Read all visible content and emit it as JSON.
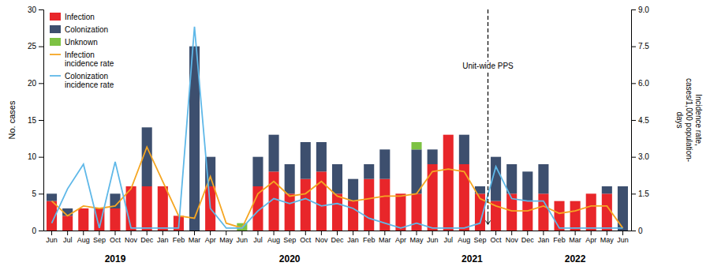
{
  "chart_data": {
    "type": "bar",
    "stacked": true,
    "legend": "upper left",
    "grid": false,
    "categories": [
      "Jun",
      "Jul",
      "Aug",
      "Sep",
      "Oct",
      "Nov",
      "Dec",
      "Jan",
      "Feb",
      "Mar",
      "Apr",
      "May",
      "Jun",
      "Jul",
      "Aug",
      "Sep",
      "Oct",
      "Nov",
      "Dec",
      "Jan",
      "Feb",
      "Mar",
      "Apr",
      "May",
      "Jun",
      "Jul",
      "Aug",
      "Sep",
      "Oct",
      "Nov",
      "Dec",
      "Jan",
      "Feb",
      "Mar",
      "Apr",
      "May",
      "Jun"
    ],
    "ylabel": "No. cases",
    "y2label": "Incidence rate,\ncases/1,000 population-\ndays",
    "ylim": [
      0,
      30
    ],
    "yticks": [
      0,
      5,
      10,
      15,
      20,
      25,
      30
    ],
    "y2lim": [
      0,
      9.0
    ],
    "y2ticks": [
      0,
      1.5,
      {
        "value": 3.0,
        "label": "3.0"
      },
      4.5,
      {
        "value": 6.0,
        "label": "6.0"
      },
      7.5,
      {
        "value": 9.0,
        "label": "9.0"
      }
    ],
    "series": [
      {
        "name": "Infection",
        "type": "bar",
        "color": "#e8262a",
        "values": [
          4,
          2,
          3,
          3,
          3,
          6,
          6,
          6,
          2,
          0,
          6,
          0,
          0,
          6,
          8,
          5,
          7,
          8,
          5,
          4,
          7,
          7,
          5,
          5,
          9,
          13,
          9,
          5,
          4,
          5,
          4,
          5,
          4,
          4,
          5,
          5,
          0
        ]
      },
      {
        "name": "Colonization",
        "type": "bar",
        "color": "#3d4f6e",
        "values": [
          1,
          1,
          0,
          0,
          2,
          0,
          8,
          0,
          0,
          25,
          4,
          0,
          0,
          4,
          5,
          4,
          5,
          4,
          4,
          3,
          2,
          4,
          0,
          6,
          2,
          0,
          4,
          1,
          6,
          4,
          4,
          4,
          0,
          0,
          0,
          1,
          6
        ]
      },
      {
        "name": "Unknown",
        "type": "bar",
        "color": "#7dc243",
        "values": [
          0,
          0,
          0,
          0,
          0,
          0,
          0,
          0,
          0,
          0,
          0,
          0,
          1,
          0,
          0,
          0,
          0,
          0,
          0,
          0,
          0,
          0,
          0,
          1,
          0,
          0,
          0,
          0,
          0,
          0,
          0,
          0,
          0,
          0,
          0,
          0,
          0
        ]
      },
      {
        "name": "Infection\nincidence rate",
        "type": "line",
        "axis": "y2",
        "color": "#f5a623",
        "values": [
          1.2,
          0.6,
          1.0,
          0.9,
          1.0,
          1.7,
          3.4,
          2.0,
          0.6,
          0.5,
          2.2,
          0.3,
          0.1,
          1.5,
          2.0,
          1.4,
          1.5,
          2.0,
          1.4,
          1.2,
          1.3,
          1.4,
          1.4,
          1.5,
          2.4,
          2.5,
          2.4,
          1.3,
          1.0,
          0.8,
          0.8,
          1.0,
          0.7,
          0.8,
          1.0,
          1.0,
          0.1
        ]
      },
      {
        "name": "Colonization\nincidence rate",
        "type": "line",
        "axis": "y2",
        "color": "#5fb8e8",
        "values": [
          0.3,
          1.7,
          2.7,
          0.1,
          2.8,
          0.1,
          0.1,
          0.1,
          0.1,
          8.3,
          0.9,
          0.1,
          0.1,
          0.8,
          1.3,
          1.1,
          1.3,
          1.0,
          1.1,
          0.9,
          0.5,
          0.3,
          0.1,
          0.3,
          0.1,
          0.1,
          0.1,
          0.3,
          2.6,
          1.3,
          1.2,
          1.2,
          0.1,
          0.1,
          0.1,
          0.1,
          0.1
        ]
      }
    ],
    "annotations": [
      {
        "text": "Unit-wide PPS",
        "x": 27.5,
        "y": 22
      }
    ],
    "year_labels": [
      {
        "text": "2019",
        "x": 4
      },
      {
        "text": "2020",
        "x": 15
      },
      {
        "text": "2021",
        "x": 26.5
      },
      {
        "text": "2022",
        "x": 33
      }
    ]
  }
}
